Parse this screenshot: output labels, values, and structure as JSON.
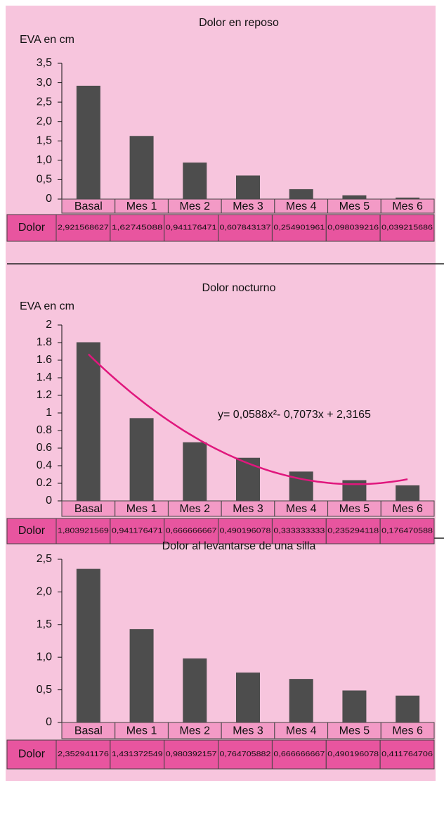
{
  "chart_data": [
    {
      "type": "bar",
      "title": "Dolor en reposo",
      "y_label": "EVA en cm",
      "categories": [
        "Basal",
        "Mes 1",
        "Mes 2",
        "Mes 3",
        "Mes 4",
        "Mes 5",
        "Mes 6"
      ],
      "series": [
        {
          "name": "Dolor",
          "color": "#4d4d4d",
          "values": [
            2.921568627,
            1.62745088,
            0.941176471,
            0.607843137,
            0.254901961,
            0.098039216,
            0.039215686
          ],
          "value_labels": [
            "2,921568627",
            "1,62745088",
            "0,941176471",
            "0,607843137",
            "0,254901961",
            "0,098039216",
            "0,039215686"
          ]
        }
      ],
      "ylim": [
        0,
        3.5
      ],
      "yticks": [
        0,
        {
          "value": 0.5,
          "label": "0,5"
        },
        {
          "value": 1,
          "label": "1,0"
        },
        {
          "value": 1.5,
          "label": "1,5"
        },
        {
          "value": 2,
          "label": "2,0"
        },
        {
          "value": 2.5,
          "label": "2,5"
        },
        {
          "value": 3,
          "label": "3,0"
        },
        {
          "value": 3.5,
          "label": "3,5"
        }
      ]
    },
    {
      "type": "bar",
      "title": "Dolor nocturno",
      "y_label": "EVA en cm",
      "categories": [
        "Basal",
        "Mes 1",
        "Mes 2",
        "Mes 3",
        "Mes 4",
        "Mes 5",
        "Mes 6"
      ],
      "series": [
        {
          "name": "Dolor",
          "color": "#4d4d4d",
          "values": [
            1.803921569,
            0.941176471,
            0.666666667,
            0.490196078,
            0.333333333,
            0.235294118,
            0.176470588
          ],
          "value_labels": [
            "1,803921569",
            "0,941176471",
            "0,666666667",
            "0,490196078",
            "0,333333333",
            "0,235294118",
            "0,176470588"
          ]
        }
      ],
      "ylim": [
        0,
        2
      ],
      "yticks": [
        0,
        0.2,
        0.4,
        0.6,
        0.8,
        1,
        1.2,
        1.4,
        1.6,
        1.8,
        2
      ],
      "trendline": {
        "coefficients": [
          0.0588,
          -0.7073,
          2.3165
        ],
        "color": "#e0177d",
        "label": "y= 0,0588x²- 0,7073x + 2,3165"
      }
    },
    {
      "type": "bar",
      "title": "Dolor al levantarse de una silla",
      "categories": [
        "Basal",
        "Mes 1",
        "Mes 2",
        "Mes 3",
        "Mes 4",
        "Mes 5",
        "Mes 6"
      ],
      "series": [
        {
          "name": "Dolor",
          "color": "#4d4d4d",
          "values": [
            2.352941176,
            1.431372549,
            0.980392157,
            0.764705882,
            0.666666667,
            0.490196078,
            0.411764706
          ],
          "value_labels": [
            "2,352941176",
            "1,431372549",
            "0,980392157",
            "0,764705882",
            "0,666666667",
            "0,490196078",
            "0,411764706"
          ]
        }
      ],
      "ylim": [
        0,
        2.5
      ],
      "yticks": [
        0,
        {
          "value": 0.5,
          "label": "0,5"
        },
        {
          "value": 1,
          "label": "1,0"
        },
        {
          "value": 1.5,
          "label": "1,5"
        },
        {
          "value": 2,
          "label": "2,0"
        },
        {
          "value": 2.5,
          "label": "2,5"
        }
      ]
    }
  ]
}
